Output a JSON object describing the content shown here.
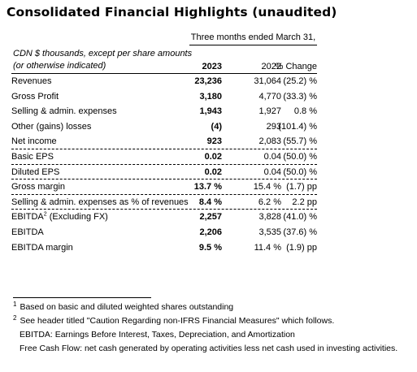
{
  "title": "Consolidated Financial Highlights (unaudited)",
  "period_header": "Three months ended March 31,",
  "note_line1": "CDN $ thousands, except per share amounts",
  "note_line2": "(or otherwise indicated)",
  "col_2023": "2023",
  "col_2022": "2022",
  "col_change": "% Change",
  "rows": [
    {
      "label": "Revenues",
      "v2023": "23,236",
      "v2022": "31,064",
      "change": "(25.2) %"
    },
    {
      "label": "Gross Profit",
      "v2023": "3,180",
      "v2022": "4,770",
      "change": "(33.3) %"
    },
    {
      "label": "Selling & admin. expenses",
      "v2023": "1,943",
      "v2022": "1,927",
      "change": "0.8 %"
    },
    {
      "label": "Other (gains) losses",
      "v2023": "(4)",
      "v2022": "293",
      "change": "(101.4) %"
    },
    {
      "label": "Net income",
      "v2023": "923",
      "v2022": "2,083",
      "change": "(55.7) %"
    },
    {
      "label": "Basic EPS",
      "v2023": "0.02",
      "v2022": "0.04",
      "change": "(50.0) %"
    },
    {
      "label": "Diluted EPS",
      "v2023": "0.02",
      "v2022": "0.04",
      "change": "(50.0) %"
    },
    {
      "label": "Gross margin",
      "v2023": "13.7 %",
      "v2022": "15.4 %",
      "change": "(1.7) pp"
    },
    {
      "label": "Selling & admin. expenses as % of revenues",
      "v2023": "8.4 %",
      "v2022": "6.2 %",
      "change": "2.2 pp"
    },
    {
      "label": "EBITDA",
      "sup": "2",
      "label_suffix": " (Excluding FX)",
      "v2023": "2,257",
      "v2022": "3,828",
      "change": "(41.0) %"
    },
    {
      "label": "EBITDA",
      "v2023": "2,206",
      "v2022": "3,535",
      "change": "(37.6) %"
    },
    {
      "label": "EBITDA margin",
      "v2023": "9.5 %",
      "v2022": "11.4 %",
      "change": "(1.9) pp"
    }
  ],
  "footnotes": {
    "fn1_mark": "1",
    "fn1_text": "Based on basic and diluted weighted shares outstanding",
    "fn2_mark": "2",
    "fn2_text": "See header titled \"Caution Regarding non-IFRS Financial Measures\" which follows.",
    "fn3_text": "EBITDA: Earnings Before Interest, Taxes, Depreciation, and Amortization",
    "fn4_text": "Free Cash Flow: net cash generated by operating activities less net cash used in investing activities."
  }
}
